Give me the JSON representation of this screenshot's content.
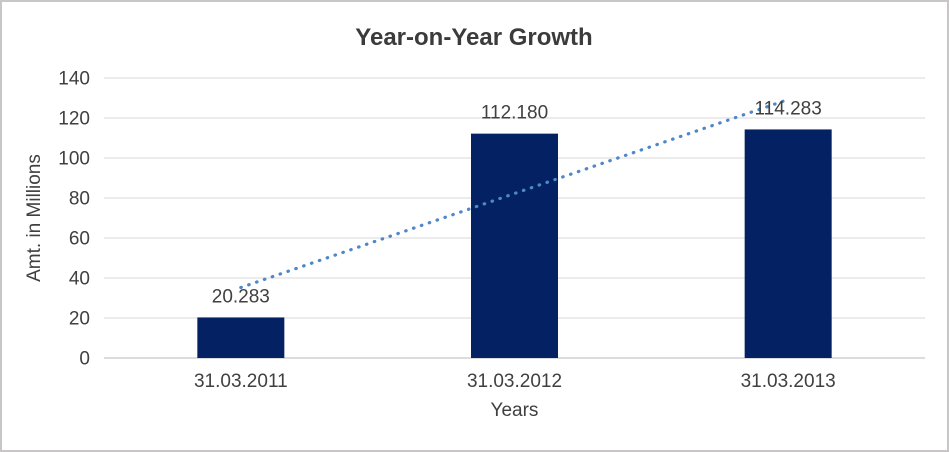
{
  "chart_data": {
    "type": "bar",
    "title": "Year-on-Year Growth",
    "categories": [
      "31.03.2011",
      "31.03.2012",
      "31.03.2013"
    ],
    "values": [
      20.283,
      112.18,
      114.283
    ],
    "data_labels": [
      "20.283",
      "112.180",
      "114.283"
    ],
    "xlabel": "Years",
    "ylabel": "Amt. in Millions",
    "ylim": [
      0,
      140
    ],
    "yticks": [
      0,
      20,
      40,
      60,
      80,
      100,
      120,
      140
    ],
    "grid": true,
    "legend": "none",
    "bar_color": "#032163",
    "trendline": {
      "type": "linear",
      "line_style": "dotted",
      "color": "#4f87c8"
    },
    "colors": {
      "gridline": "#d9d9d9",
      "axis_line": "#d0d0d0",
      "text": "#404040",
      "title": "#3b3b3b",
      "background": "#ffffff",
      "frame_border": "#c8c6c6"
    }
  }
}
